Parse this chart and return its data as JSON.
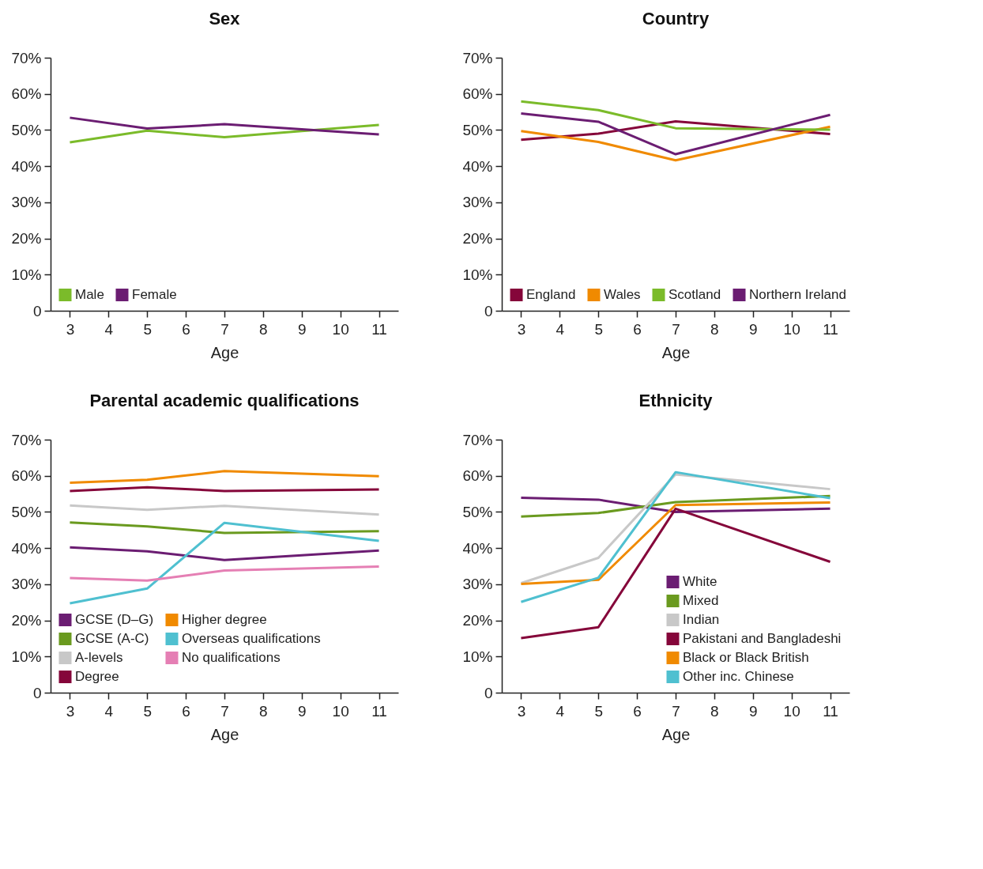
{
  "chart_data": [
    {
      "type": "line",
      "title": "Sex",
      "xlabel": "Age",
      "x": [
        3,
        5,
        7,
        11
      ],
      "xlim": [
        2.5,
        11.5
      ],
      "xticks": [
        3,
        4,
        5,
        6,
        7,
        8,
        9,
        10,
        11
      ],
      "ylim": [
        0,
        70
      ],
      "yticks": [
        {
          "value": 0,
          "label": "0"
        },
        {
          "value": 10,
          "label": "10%"
        },
        {
          "value": 20,
          "label": "20%"
        },
        {
          "value": 30,
          "label": "30%"
        },
        {
          "value": 40,
          "label": "40%"
        },
        {
          "value": 50,
          "label": "50%"
        },
        {
          "value": 60,
          "label": "60%"
        },
        {
          "value": 70,
          "label": "70%"
        }
      ],
      "legend": "bottom",
      "series": [
        {
          "name": "Male",
          "color": "#7bbb2a",
          "values": [
            46.6,
            49.8,
            48.0,
            51.4
          ]
        },
        {
          "name": "Female",
          "color": "#6b1d72",
          "values": [
            53.4,
            50.4,
            51.6,
            48.8
          ]
        }
      ]
    },
    {
      "type": "line",
      "title": "Country",
      "xlabel": "Age",
      "x": [
        3,
        5,
        7,
        11
      ],
      "xlim": [
        2.5,
        11.5
      ],
      "xticks": [
        3,
        4,
        5,
        6,
        7,
        8,
        9,
        10,
        11
      ],
      "ylim": [
        0,
        70
      ],
      "yticks": [
        {
          "value": 0,
          "label": "0"
        },
        {
          "value": 10,
          "label": "10%"
        },
        {
          "value": 20,
          "label": "20%"
        },
        {
          "value": 30,
          "label": "30%"
        },
        {
          "value": 40,
          "label": "40%"
        },
        {
          "value": 50,
          "label": "50%"
        },
        {
          "value": 60,
          "label": "60%"
        },
        {
          "value": 70,
          "label": "70%"
        }
      ],
      "legend": "bottom",
      "series": [
        {
          "name": "England",
          "color": "#85063a",
          "values": [
            47.3,
            49.0,
            52.4,
            48.9
          ]
        },
        {
          "name": "Wales",
          "color": "#f08a00",
          "values": [
            49.7,
            46.7,
            41.6,
            50.9
          ]
        },
        {
          "name": "Scotland",
          "color": "#7bbb2a",
          "values": [
            57.9,
            55.5,
            50.5,
            50.1
          ]
        },
        {
          "name": "Northern Ireland",
          "color": "#6b1d72",
          "values": [
            54.6,
            52.3,
            43.3,
            54.2
          ]
        }
      ]
    },
    {
      "type": "line",
      "title": "Parental academic qualifications",
      "xlabel": "Age",
      "x": [
        3,
        5,
        7,
        11
      ],
      "xlim": [
        2.5,
        11.5
      ],
      "xticks": [
        3,
        4,
        5,
        6,
        7,
        8,
        9,
        10,
        11
      ],
      "ylim": [
        0,
        70
      ],
      "yticks": [
        {
          "value": 0,
          "label": "0"
        },
        {
          "value": 10,
          "label": "10%"
        },
        {
          "value": 20,
          "label": "20%"
        },
        {
          "value": 30,
          "label": "30%"
        },
        {
          "value": 40,
          "label": "40%"
        },
        {
          "value": 50,
          "label": "50%"
        },
        {
          "value": 60,
          "label": "60%"
        },
        {
          "value": 70,
          "label": "70%"
        }
      ],
      "legend": "bottom",
      "series": [
        {
          "name": "GCSE (D–G)",
          "color": "#6b1d72",
          "values": [
            40.2,
            39.1,
            36.7,
            39.3
          ]
        },
        {
          "name": "GCSE (A-C)",
          "color": "#6a9a1f",
          "values": [
            47.1,
            46.0,
            44.2,
            44.7
          ]
        },
        {
          "name": "A-levels",
          "color": "#c8c8c8",
          "values": [
            51.8,
            50.6,
            51.7,
            49.3
          ]
        },
        {
          "name": "Degree",
          "color": "#85063a",
          "values": [
            55.8,
            56.8,
            55.8,
            56.2
          ]
        },
        {
          "name": "Higher degree",
          "color": "#f08a00",
          "values": [
            58.1,
            58.9,
            61.3,
            59.9
          ]
        },
        {
          "name": "Overseas qualifications",
          "color": "#4fc0d0",
          "values": [
            24.7,
            28.8,
            47.0,
            42.0
          ]
        },
        {
          "name": "No qualifications",
          "color": "#e57fb4",
          "values": [
            31.7,
            31.0,
            33.8,
            34.9
          ]
        }
      ]
    },
    {
      "type": "line",
      "title": "Ethnicity",
      "xlabel": "Age",
      "x": [
        3,
        5,
        7,
        11
      ],
      "xlim": [
        2.5,
        11.5
      ],
      "xticks": [
        3,
        4,
        5,
        6,
        7,
        8,
        9,
        10,
        11
      ],
      "ylim": [
        0,
        70
      ],
      "yticks": [
        {
          "value": 0,
          "label": "0"
        },
        {
          "value": 10,
          "label": "10%"
        },
        {
          "value": 20,
          "label": "20%"
        },
        {
          "value": 30,
          "label": "30%"
        },
        {
          "value": 40,
          "label": "40%"
        },
        {
          "value": 50,
          "label": "50%"
        },
        {
          "value": 60,
          "label": "60%"
        },
        {
          "value": 70,
          "label": "70%"
        }
      ],
      "legend": "bottom right",
      "series": [
        {
          "name": "White",
          "color": "#6b1d72",
          "values": [
            53.9,
            53.4,
            50.0,
            50.9
          ]
        },
        {
          "name": "Mixed",
          "color": "#6a9a1f",
          "values": [
            48.7,
            49.7,
            52.7,
            54.4
          ]
        },
        {
          "name": "Indian",
          "color": "#c8c8c8",
          "values": [
            30.3,
            37.3,
            60.4,
            56.3
          ]
        },
        {
          "name": "Pakistani and Bangladeshi",
          "color": "#85063a",
          "values": [
            15.1,
            18.1,
            50.9,
            36.2
          ]
        },
        {
          "name": "Black or Black British",
          "color": "#f08a00",
          "values": [
            30.1,
            31.2,
            51.9,
            52.6
          ]
        },
        {
          "name": "Other inc. Chinese",
          "color": "#4fc0d0",
          "values": [
            25.1,
            31.8,
            61.0,
            53.8
          ]
        }
      ]
    }
  ]
}
